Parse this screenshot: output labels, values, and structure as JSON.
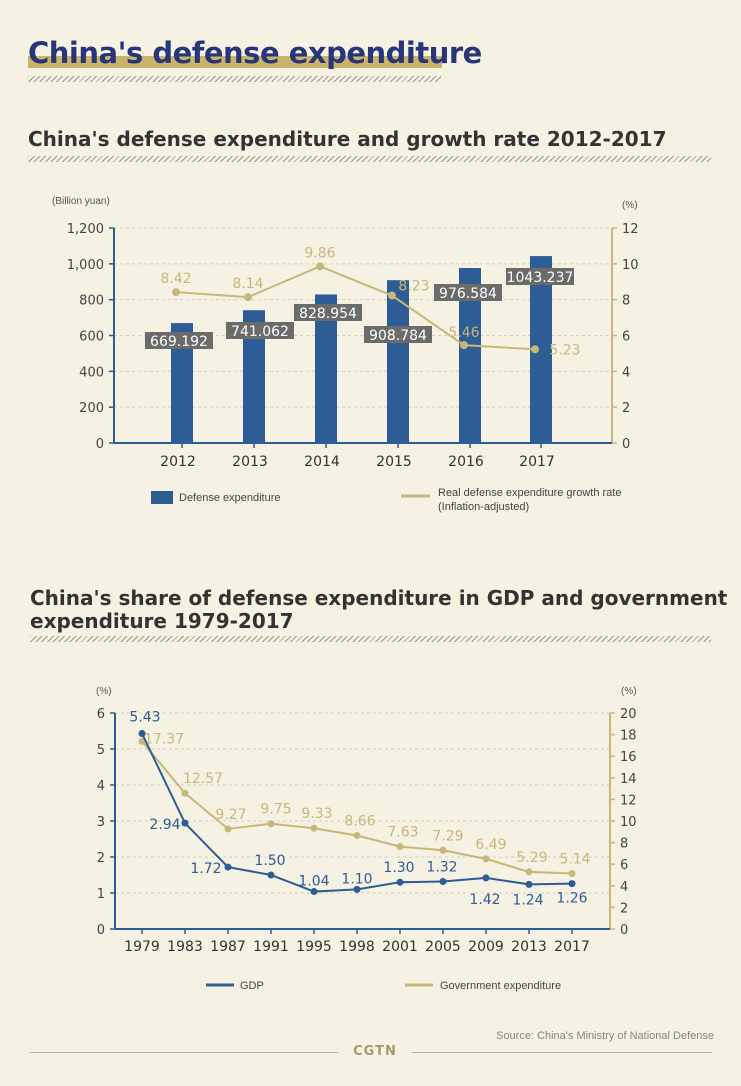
{
  "page": {
    "title": "China's defense expenditure",
    "source": "Source: China's Ministry of National Defense",
    "brand": "CGTN"
  },
  "colors": {
    "blue": "#2e5c94",
    "gold": "#c7b77a",
    "text": "#333333"
  },
  "chart_data": [
    {
      "type": "bar",
      "title": "China's defense expenditure and growth rate 2012-2017",
      "categories": [
        "2012",
        "2013",
        "2014",
        "2015",
        "2016",
        "2017"
      ],
      "y_left_unit": "(Billion yuan)",
      "y_right_unit": "(%)",
      "ylim_left": [
        0,
        1200
      ],
      "ylim_right": [
        0,
        12
      ],
      "y_left_ticks": [
        "0",
        "200",
        "400",
        "600",
        "800",
        "1,000",
        "1,200"
      ],
      "y_right_ticks": [
        "0",
        "2",
        "4",
        "6",
        "8",
        "10",
        "12"
      ],
      "series": [
        {
          "name": "Defense expenditure",
          "type": "bar",
          "axis": "left",
          "values": [
            669.192,
            741.062,
            828.954,
            908.784,
            976.584,
            1043.237
          ],
          "labels": [
            "669.192",
            "741.062",
            "828.954",
            "908.784",
            "976.584",
            "1043.237"
          ]
        },
        {
          "name": "Real defense expenditure growth rate",
          "name_note": "(Inflation-adjusted)",
          "type": "line",
          "axis": "right",
          "values": [
            8.42,
            8.14,
            9.86,
            8.23,
            5.46,
            5.23
          ],
          "labels": [
            "8.42",
            "8.14",
            "9.86",
            "8.23",
            "5.46",
            "5.23"
          ]
        }
      ],
      "legend": "bottom"
    },
    {
      "type": "line",
      "title_line1": "China's share of defense expenditure in GDP and government",
      "title_line2": "expenditure 1979-2017",
      "categories": [
        "1979",
        "1983",
        "1987",
        "1991",
        "1995",
        "1998",
        "2001",
        "2005",
        "2009",
        "2013",
        "2017"
      ],
      "y_left_unit": "(%)",
      "y_right_unit": "(%)",
      "ylim_left": [
        0,
        6
      ],
      "ylim_right": [
        0,
        20
      ],
      "y_left_ticks": [
        "0",
        "1",
        "2",
        "3",
        "4",
        "5",
        "6"
      ],
      "y_right_ticks": [
        "0",
        "2",
        "4",
        "6",
        "8",
        "10",
        "12",
        "14",
        "16",
        "18",
        "20"
      ],
      "series": [
        {
          "name": "GDP",
          "axis": "left",
          "values": [
            5.43,
            2.94,
            1.72,
            1.5,
            1.04,
            1.1,
            1.3,
            1.32,
            1.42,
            1.24,
            1.26
          ],
          "labels": [
            "5.43",
            "2.94",
            "1.72",
            "1.50",
            "1.04",
            "1.10",
            "1.30",
            "1.32",
            "1.42",
            "1.24",
            "1.26"
          ]
        },
        {
          "name": "Government expenditure",
          "axis": "right",
          "values": [
            17.37,
            12.57,
            9.27,
            9.75,
            9.33,
            8.66,
            7.63,
            7.29,
            6.49,
            5.29,
            5.14
          ],
          "labels": [
            "17.37",
            "12.57",
            "9.27",
            "9.75",
            "9.33",
            "8.66",
            "7.63",
            "7.29",
            "6.49",
            "5.29",
            "5.14"
          ]
        }
      ],
      "legend": "bottom"
    }
  ]
}
